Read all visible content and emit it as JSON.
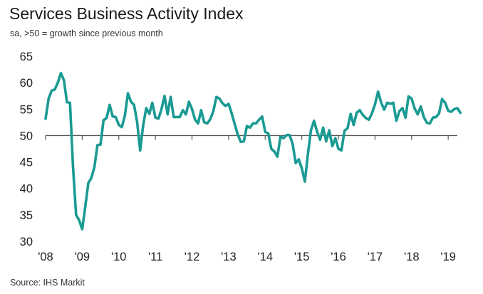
{
  "chart_data": {
    "type": "line",
    "title": "Services Business Activity Index",
    "subtitle": "sa, >50 = growth since previous month",
    "source": "Source: IHS Markit",
    "ylim": [
      30,
      65
    ],
    "yticks": [
      "30",
      "35",
      "40",
      "45",
      "50",
      "55",
      "60",
      "65"
    ],
    "xticks": [
      "'08",
      "'09",
      "'10",
      "'11",
      "'12",
      "'13",
      "'14",
      "'15",
      "'16",
      "'17",
      "'18",
      "'19"
    ],
    "reference_line": 50,
    "grid": false,
    "series": [
      {
        "color": "#1a9a93",
        "x_start": "2008-01",
        "values": [
          53.2,
          57.0,
          58.5,
          58.7,
          60.0,
          61.8,
          60.5,
          56.3,
          56.2,
          44.0,
          35.0,
          34.0,
          32.3,
          36.5,
          41.0,
          42.0,
          44.0,
          48.2,
          48.3,
          52.9,
          53.3,
          55.8,
          53.6,
          53.5,
          52.0,
          51.6,
          53.8,
          58.0,
          56.4,
          55.8,
          52.6,
          47.2,
          52.0,
          55.2,
          54.1,
          56.2,
          53.4,
          53.2,
          55.0,
          57.5,
          54.0,
          57.3,
          53.5,
          53.5,
          53.5,
          54.8,
          54.0,
          56.4,
          55.0,
          53.0,
          52.3,
          54.8,
          52.5,
          52.3,
          53.1,
          54.6,
          57.3,
          57.0,
          56.1,
          55.6,
          56.0,
          54.2,
          52.2,
          50.2,
          48.8,
          48.9,
          51.8,
          51.5,
          52.3,
          52.3,
          53.0,
          53.6,
          50.7,
          50.4,
          47.5,
          47.0,
          46.0,
          49.8,
          49.5,
          50.1,
          50.1,
          48.4,
          44.8,
          45.5,
          43.8,
          41.3,
          46.5,
          51.0,
          52.8,
          50.8,
          49.2,
          51.5,
          48.9,
          51.0,
          48.0,
          49.5,
          47.5,
          47.2,
          50.9,
          51.4,
          54.1,
          52.0,
          54.3,
          54.8,
          53.9,
          53.3,
          53.0,
          54.2,
          55.9,
          58.3,
          56.3,
          54.9,
          56.2,
          56.0,
          56.2,
          52.8,
          54.6,
          55.2,
          53.4,
          57.4,
          57.0,
          55.1,
          54.0,
          55.5,
          53.5,
          52.4,
          52.3,
          53.4,
          53.5,
          54.2,
          56.9,
          56.2,
          54.7,
          54.5,
          55.0,
          55.2,
          54.3
        ]
      }
    ]
  }
}
